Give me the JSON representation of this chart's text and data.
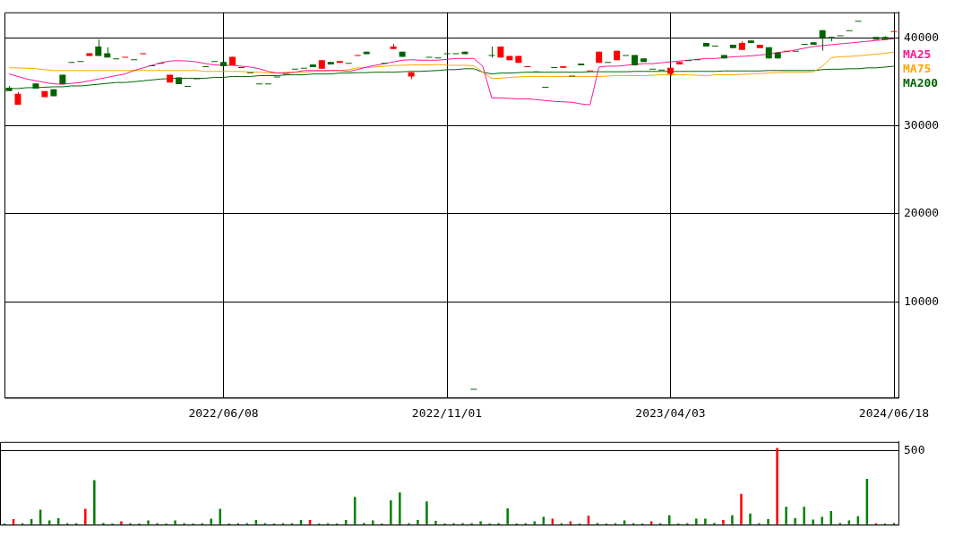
{
  "chart_data": [
    {
      "type": "candlestick",
      "categories": [
        null,
        null,
        null,
        null,
        null,
        null,
        null,
        null,
        null,
        null,
        null,
        null,
        null,
        null,
        null,
        null,
        null,
        null,
        null,
        null,
        null,
        null,
        null,
        null,
        "2022/06/08",
        null,
        null,
        null,
        null,
        null,
        null,
        null,
        null,
        null,
        null,
        null,
        null,
        null,
        null,
        null,
        null,
        null,
        null,
        null,
        null,
        null,
        null,
        null,
        null,
        "2022/11/01",
        null,
        null,
        null,
        null,
        null,
        null,
        null,
        null,
        null,
        null,
        null,
        null,
        null,
        null,
        null,
        null,
        null,
        null,
        null,
        null,
        null,
        null,
        null,
        null,
        "2023/04/03",
        null,
        null,
        null,
        null,
        null,
        null,
        null,
        null,
        null,
        null,
        null,
        null,
        null,
        null,
        null,
        null,
        null,
        null,
        null,
        null,
        null,
        null,
        null,
        null,
        "2024/06/18"
      ],
      "ohlc": [
        [
          34340,
          34540,
          33950,
          33950
        ],
        [
          32390,
          33850,
          32390,
          33660
        ],
        null,
        [
          34830,
          34830,
          34240,
          34240
        ],
        [
          33270,
          33950,
          33270,
          33950
        ],
        [
          34150,
          34150,
          33370,
          33370
        ],
        [
          35800,
          35800,
          34730,
          34730
        ],
        [
          37270,
          37270,
          37170,
          37170
        ],
        [
          37370,
          37370,
          37370,
          37370
        ],
        [
          37950,
          38240,
          37950,
          38240
        ],
        [
          39020,
          39800,
          37950,
          37950
        ],
        [
          38240,
          38930,
          37760,
          37760
        ],
        [
          37660,
          37660,
          37660,
          37660
        ],
        [
          37850,
          37850,
          37850,
          37850
        ],
        [
          37560,
          37560,
          37560,
          37560
        ],
        [
          38150,
          38240,
          38150,
          38240
        ],
        [
          36880,
          36880,
          36880,
          36880
        ],
        [
          37170,
          37170,
          37170,
          37170
        ],
        [
          34930,
          35800,
          34930,
          35800
        ],
        [
          35510,
          35510,
          34730,
          34730
        ],
        [
          34540,
          34540,
          34540,
          34540
        ],
        [
          35410,
          35410,
          35410,
          35410
        ],
        [
          36780,
          36780,
          36780,
          36780
        ],
        [
          37370,
          37370,
          37370,
          37370
        ],
        [
          37270,
          37270,
          36780,
          36780
        ],
        [
          36880,
          37850,
          36880,
          37850
        ],
        [
          36680,
          36680,
          36680,
          36680
        ],
        [
          36100,
          36100,
          36100,
          36100
        ],
        [
          34830,
          34830,
          34830,
          34830
        ],
        [
          34830,
          34830,
          34830,
          34830
        ],
        [
          35610,
          35610,
          35610,
          35610
        ],
        [
          35900,
          35900,
          35900,
          35900
        ],
        [
          36490,
          36490,
          36490,
          36490
        ],
        [
          36590,
          36590,
          36590,
          36590
        ],
        [
          36980,
          36980,
          36680,
          36680
        ],
        [
          36490,
          37460,
          36490,
          37460
        ],
        [
          37270,
          37270,
          36980,
          36980
        ],
        [
          37170,
          37370,
          37170,
          37370
        ],
        [
          37170,
          37170,
          37170,
          37170
        ],
        [
          37950,
          38050,
          37950,
          38050
        ],
        [
          38440,
          38440,
          38150,
          38150
        ],
        null,
        [
          37170,
          37170,
          37170,
          37170
        ],
        [
          38730,
          39320,
          38730,
          39020
        ],
        [
          38440,
          38440,
          37850,
          37850
        ],
        [
          35610,
          36100,
          35320,
          36100
        ],
        null,
        [
          37850,
          37850,
          37850,
          37850
        ],
        [
          37760,
          37760,
          37760,
          37760
        ],
        [
          38240,
          38240,
          38240,
          38240
        ],
        [
          38240,
          38240,
          38240,
          38240
        ],
        [
          38440,
          38440,
          38150,
          38150
        ],
        [
          100,
          100,
          100,
          100
        ],
        null,
        [
          38050,
          39020,
          37760,
          37950
        ],
        [
          37760,
          39020,
          37760,
          39020
        ],
        [
          37460,
          37950,
          37460,
          37950
        ],
        [
          37170,
          37950,
          37170,
          37950
        ],
        [
          36780,
          36780,
          36780,
          36780
        ],
        [
          36190,
          36190,
          36190,
          36190
        ],
        [
          34440,
          34440,
          34440,
          34440
        ],
        [
          36680,
          36680,
          36680,
          36680
        ],
        [
          36590,
          36780,
          36590,
          36780
        ],
        [
          35710,
          35710,
          35710,
          35710
        ],
        [
          37070,
          37070,
          36880,
          36880
        ],
        [
          36290,
          36290,
          36290,
          36290
        ],
        [
          37170,
          38440,
          37170,
          38440
        ],
        [
          37270,
          37270,
          37270,
          37270
        ],
        [
          37460,
          38540,
          37460,
          38540
        ],
        [
          38050,
          38050,
          38050,
          38050
        ],
        [
          38050,
          38050,
          36880,
          36880
        ],
        [
          37660,
          37660,
          37270,
          37270
        ],
        [
          36490,
          36490,
          36490,
          36490
        ],
        [
          36390,
          36390,
          36390,
          36390
        ],
        [
          35900,
          36590,
          35710,
          36590
        ],
        [
          36980,
          37270,
          36980,
          37270
        ],
        [
          37460,
          37460,
          37460,
          37460
        ],
        [
          37560,
          37560,
          37560,
          37560
        ],
        [
          39410,
          39410,
          39020,
          39020
        ],
        [
          39120,
          39120,
          39120,
          39120
        ],
        [
          38050,
          38050,
          37660,
          37660
        ],
        [
          39220,
          39220,
          38830,
          38830
        ],
        [
          38630,
          39610,
          38630,
          39410
        ],
        [
          39710,
          39710,
          39410,
          39410
        ],
        [
          38830,
          39220,
          38830,
          39220
        ],
        [
          38930,
          38930,
          37660,
          37660
        ],
        [
          38340,
          38340,
          37660,
          37660
        ],
        [
          38540,
          38540,
          38540,
          38540
        ],
        [
          38540,
          38540,
          38540,
          38540
        ],
        [
          39320,
          39320,
          39320,
          39320
        ],
        [
          39510,
          39510,
          39220,
          39220
        ],
        [
          40880,
          40880,
          38540,
          40000
        ],
        [
          40100,
          40100,
          39610,
          40100
        ],
        [
          40290,
          40290,
          40290,
          40290
        ],
        [
          40880,
          40880,
          40880,
          40880
        ],
        [
          41950,
          41950,
          41950,
          41950
        ],
        null,
        [
          40100,
          40100,
          39800,
          39800
        ],
        [
          40100,
          40200,
          39800,
          39800
        ],
        [
          40780,
          40780,
          40780,
          40780
        ]
      ],
      "colors": [
        "#006400",
        "#ff0000",
        null,
        "#006400",
        "#ff0000",
        "#006400",
        "#006400",
        "#006400",
        "#006400",
        "#ff0000",
        "#006400",
        "#006400",
        "#006400",
        "#ff0000",
        "#006400",
        "#ff0000",
        "#006400",
        "#006400",
        "#ff0000",
        "#006400",
        "#006400",
        "#006400",
        "#006400",
        "#006400",
        "#006400",
        "#ff0000",
        "#006400",
        "#006400",
        "#006400",
        "#006400",
        "#006400",
        "#006400",
        "#006400",
        "#006400",
        "#006400",
        "#ff0000",
        "#006400",
        "#ff0000",
        "#006400",
        "#ff0000",
        "#006400",
        null,
        "#006400",
        "#ff0000",
        "#006400",
        "#ff0000",
        null,
        "#006400",
        "#006400",
        "#006400",
        "#006400",
        "#006400",
        "#006400",
        null,
        "#006400",
        "#ff0000",
        "#ff0000",
        "#ff0000",
        "#ff0000",
        "#006400",
        "#006400",
        "#006400",
        "#ff0000",
        "#006400",
        "#006400",
        "#ff0000",
        "#ff0000",
        "#006400",
        "#ff0000",
        "#006400",
        "#006400",
        "#006400",
        "#006400",
        "#006400",
        "#ff0000",
        "#ff0000",
        "#006400",
        "#006400",
        "#006400",
        "#006400",
        "#006400",
        "#006400",
        "#ff0000",
        "#006400",
        "#ff0000",
        "#006400",
        "#006400",
        "#ff0000",
        "#006400",
        "#006400",
        "#006400",
        "#006400",
        "#006400",
        "#006400",
        "#006400",
        "#006400",
        null,
        "#006400",
        "#006400",
        "#ff0000"
      ],
      "series": [
        {
          "name": "MA25",
          "type": "line",
          "color": "#ff1493",
          "values": [
            35900,
            35610,
            35320,
            35120,
            34930,
            34780,
            34730,
            34830,
            34930,
            35120,
            35320,
            35510,
            35710,
            35900,
            36290,
            36590,
            36880,
            37170,
            37370,
            37410,
            37370,
            37270,
            37070,
            36930,
            36880,
            36880,
            36780,
            36680,
            36490,
            36190,
            36000,
            36000,
            36100,
            36290,
            36290,
            36290,
            36290,
            36290,
            36190,
            36390,
            36680,
            36880,
            37070,
            37270,
            37460,
            37510,
            37460,
            37460,
            37460,
            37560,
            37660,
            37660,
            37660,
            36780,
            33170,
            33170,
            33120,
            33070,
            33070,
            32980,
            32880,
            32780,
            32730,
            32680,
            32490,
            32390,
            36680,
            36780,
            36780,
            36880,
            36980,
            37070,
            37070,
            37170,
            37270,
            37370,
            37460,
            37560,
            37660,
            37660,
            37760,
            37850,
            37900,
            37950,
            38050,
            38150,
            38340,
            38440,
            38630,
            38830,
            39020,
            39120,
            39220,
            39320,
            39410,
            39510,
            39610,
            39710,
            39800,
            39900
          ]
        },
        {
          "name": "MA75",
          "type": "line",
          "color": "#ffa500",
          "values": [
            36590,
            36590,
            36540,
            36490,
            36390,
            36290,
            36290,
            36290,
            36290,
            36290,
            36290,
            36290,
            36290,
            36290,
            36290,
            36290,
            36290,
            36290,
            36290,
            36290,
            36290,
            36290,
            36190,
            36190,
            36190,
            36190,
            36190,
            36100,
            36100,
            36000,
            36000,
            36100,
            36100,
            36100,
            36190,
            36190,
            36290,
            36290,
            36390,
            36590,
            36630,
            36680,
            36780,
            36880,
            36880,
            36930,
            36930,
            36930,
            36980,
            36880,
            36880,
            36880,
            36830,
            36100,
            35410,
            35410,
            35510,
            35560,
            35610,
            35610,
            35610,
            35610,
            35610,
            35610,
            35610,
            35610,
            35610,
            35660,
            35710,
            35710,
            35710,
            35710,
            35760,
            35800,
            35800,
            35800,
            35800,
            35760,
            35710,
            35800,
            35800,
            35800,
            35850,
            35900,
            35950,
            36000,
            36050,
            36100,
            36100,
            36100,
            36150,
            36780,
            37760,
            37850,
            37900,
            37950,
            38050,
            38150,
            38240,
            38390
          ]
        },
        {
          "name": "MA200",
          "type": "line",
          "color": "#006400",
          "values": [
            34240,
            34240,
            34340,
            34340,
            34390,
            34440,
            34440,
            34540,
            34540,
            34630,
            34730,
            34830,
            34930,
            34930,
            35020,
            35120,
            35220,
            35320,
            35370,
            35410,
            35410,
            35410,
            35410,
            35510,
            35510,
            35610,
            35610,
            35610,
            35710,
            35710,
            35710,
            35800,
            35800,
            35800,
            35900,
            35900,
            35900,
            36000,
            36000,
            36050,
            36050,
            36100,
            36100,
            36100,
            36150,
            36190,
            36190,
            36240,
            36290,
            36390,
            36390,
            36490,
            36490,
            36100,
            35900,
            36000,
            36000,
            36050,
            36100,
            36100,
            36100,
            36100,
            36100,
            36100,
            36100,
            36150,
            36150,
            36150,
            36150,
            36150,
            36190,
            36190,
            36190,
            36190,
            36190,
            36190,
            36190,
            36190,
            36190,
            36190,
            36240,
            36240,
            36240,
            36240,
            36240,
            36290,
            36290,
            36290,
            36290,
            36290,
            36290,
            36390,
            36440,
            36440,
            36490,
            36490,
            36590,
            36590,
            36680,
            36780
          ]
        }
      ],
      "ylim": [
        -900,
        42900
      ],
      "yticks": [
        10000,
        20000,
        30000,
        40000
      ],
      "grid": true,
      "legend": "top right"
    },
    {
      "type": "bar",
      "categories": [
        null,
        null,
        null,
        null,
        null,
        null,
        null,
        null,
        null,
        null,
        null,
        null,
        null,
        null,
        null,
        null,
        null,
        null,
        null,
        null,
        null,
        null,
        null,
        null,
        null,
        null,
        null,
        null,
        null,
        null,
        null,
        null,
        null,
        null,
        null,
        null,
        null,
        null,
        null,
        null,
        null,
        null,
        null,
        null,
        null,
        null,
        null,
        null,
        null,
        null,
        null,
        null,
        null,
        null,
        null,
        null,
        null,
        null,
        null,
        null,
        null,
        null,
        null,
        null,
        null,
        null,
        null,
        null,
        null,
        null,
        null,
        null,
        null,
        null,
        null,
        null,
        null,
        null,
        null,
        null,
        null,
        null,
        null,
        null,
        null,
        null,
        null,
        null,
        null,
        null,
        null,
        null,
        null,
        null,
        null,
        null,
        null,
        null,
        null,
        null
      ],
      "values": [
        8,
        38,
        10,
        38,
        100,
        28,
        44,
        10,
        10,
        107,
        299,
        12,
        8,
        22,
        10,
        8,
        28,
        10,
        8,
        28,
        10,
        8,
        10,
        41,
        107,
        8,
        10,
        10,
        31,
        10,
        8,
        10,
        10,
        31,
        31,
        8,
        10,
        8,
        31,
        186,
        12,
        28,
        8,
        164,
        217,
        10,
        31,
        157,
        25,
        8,
        10,
        10,
        10,
        22,
        8,
        10,
        110,
        8,
        10,
        22,
        53,
        41,
        10,
        22,
        8,
        60,
        12,
        8,
        10,
        28,
        10,
        8,
        22,
        10,
        63,
        8,
        10,
        41,
        41,
        12,
        31,
        63,
        208,
        75,
        10,
        38,
        516,
        120,
        44,
        120,
        35,
        53,
        91,
        12,
        28,
        57,
        308,
        10,
        8,
        12
      ],
      "colors": [
        "#008000",
        "#ff0000",
        "#008000",
        "#008000",
        "#008000",
        "#008000",
        "#008000",
        "#008000",
        "#008000",
        "#ff0000",
        "#008000",
        "#008000",
        "#008000",
        "#ff0000",
        "#008000",
        "#008000",
        "#008000",
        "#008000",
        "#008000",
        "#008000",
        "#008000",
        "#008000",
        "#008000",
        "#008000",
        "#008000",
        "#008000",
        "#008000",
        "#008000",
        "#008000",
        "#008000",
        "#008000",
        "#008000",
        "#008000",
        "#008000",
        "#ff0000",
        "#008000",
        "#008000",
        "#008000",
        "#008000",
        "#008000",
        "#008000",
        "#008000",
        "#008000",
        "#008000",
        "#008000",
        "#008000",
        "#008000",
        "#008000",
        "#008000",
        "#008000",
        "#008000",
        "#008000",
        "#008000",
        "#008000",
        "#008000",
        "#008000",
        "#008000",
        "#008000",
        "#008000",
        "#008000",
        "#008000",
        "#ff0000",
        "#008000",
        "#ff0000",
        "#008000",
        "#ff0000",
        "#008000",
        "#008000",
        "#008000",
        "#008000",
        "#008000",
        "#008000",
        "#ff0000",
        "#008000",
        "#008000",
        "#008000",
        "#008000",
        "#008000",
        "#008000",
        "#008000",
        "#ff0000",
        "#008000",
        "#ff0000",
        "#008000",
        "#008000",
        "#008000",
        "#ff0000",
        "#008000",
        "#008000",
        "#008000",
        "#008000",
        "#008000",
        "#008000",
        "#008000",
        "#008000",
        "#008000",
        "#008000",
        "#ff0000",
        "#008000",
        "#008000"
      ],
      "ylim": [
        0,
        557
      ],
      "yticks": [
        {
          "value": 0,
          "label": null
        },
        500
      ],
      "grid": "y",
      "tick_labels": "y"
    }
  ]
}
